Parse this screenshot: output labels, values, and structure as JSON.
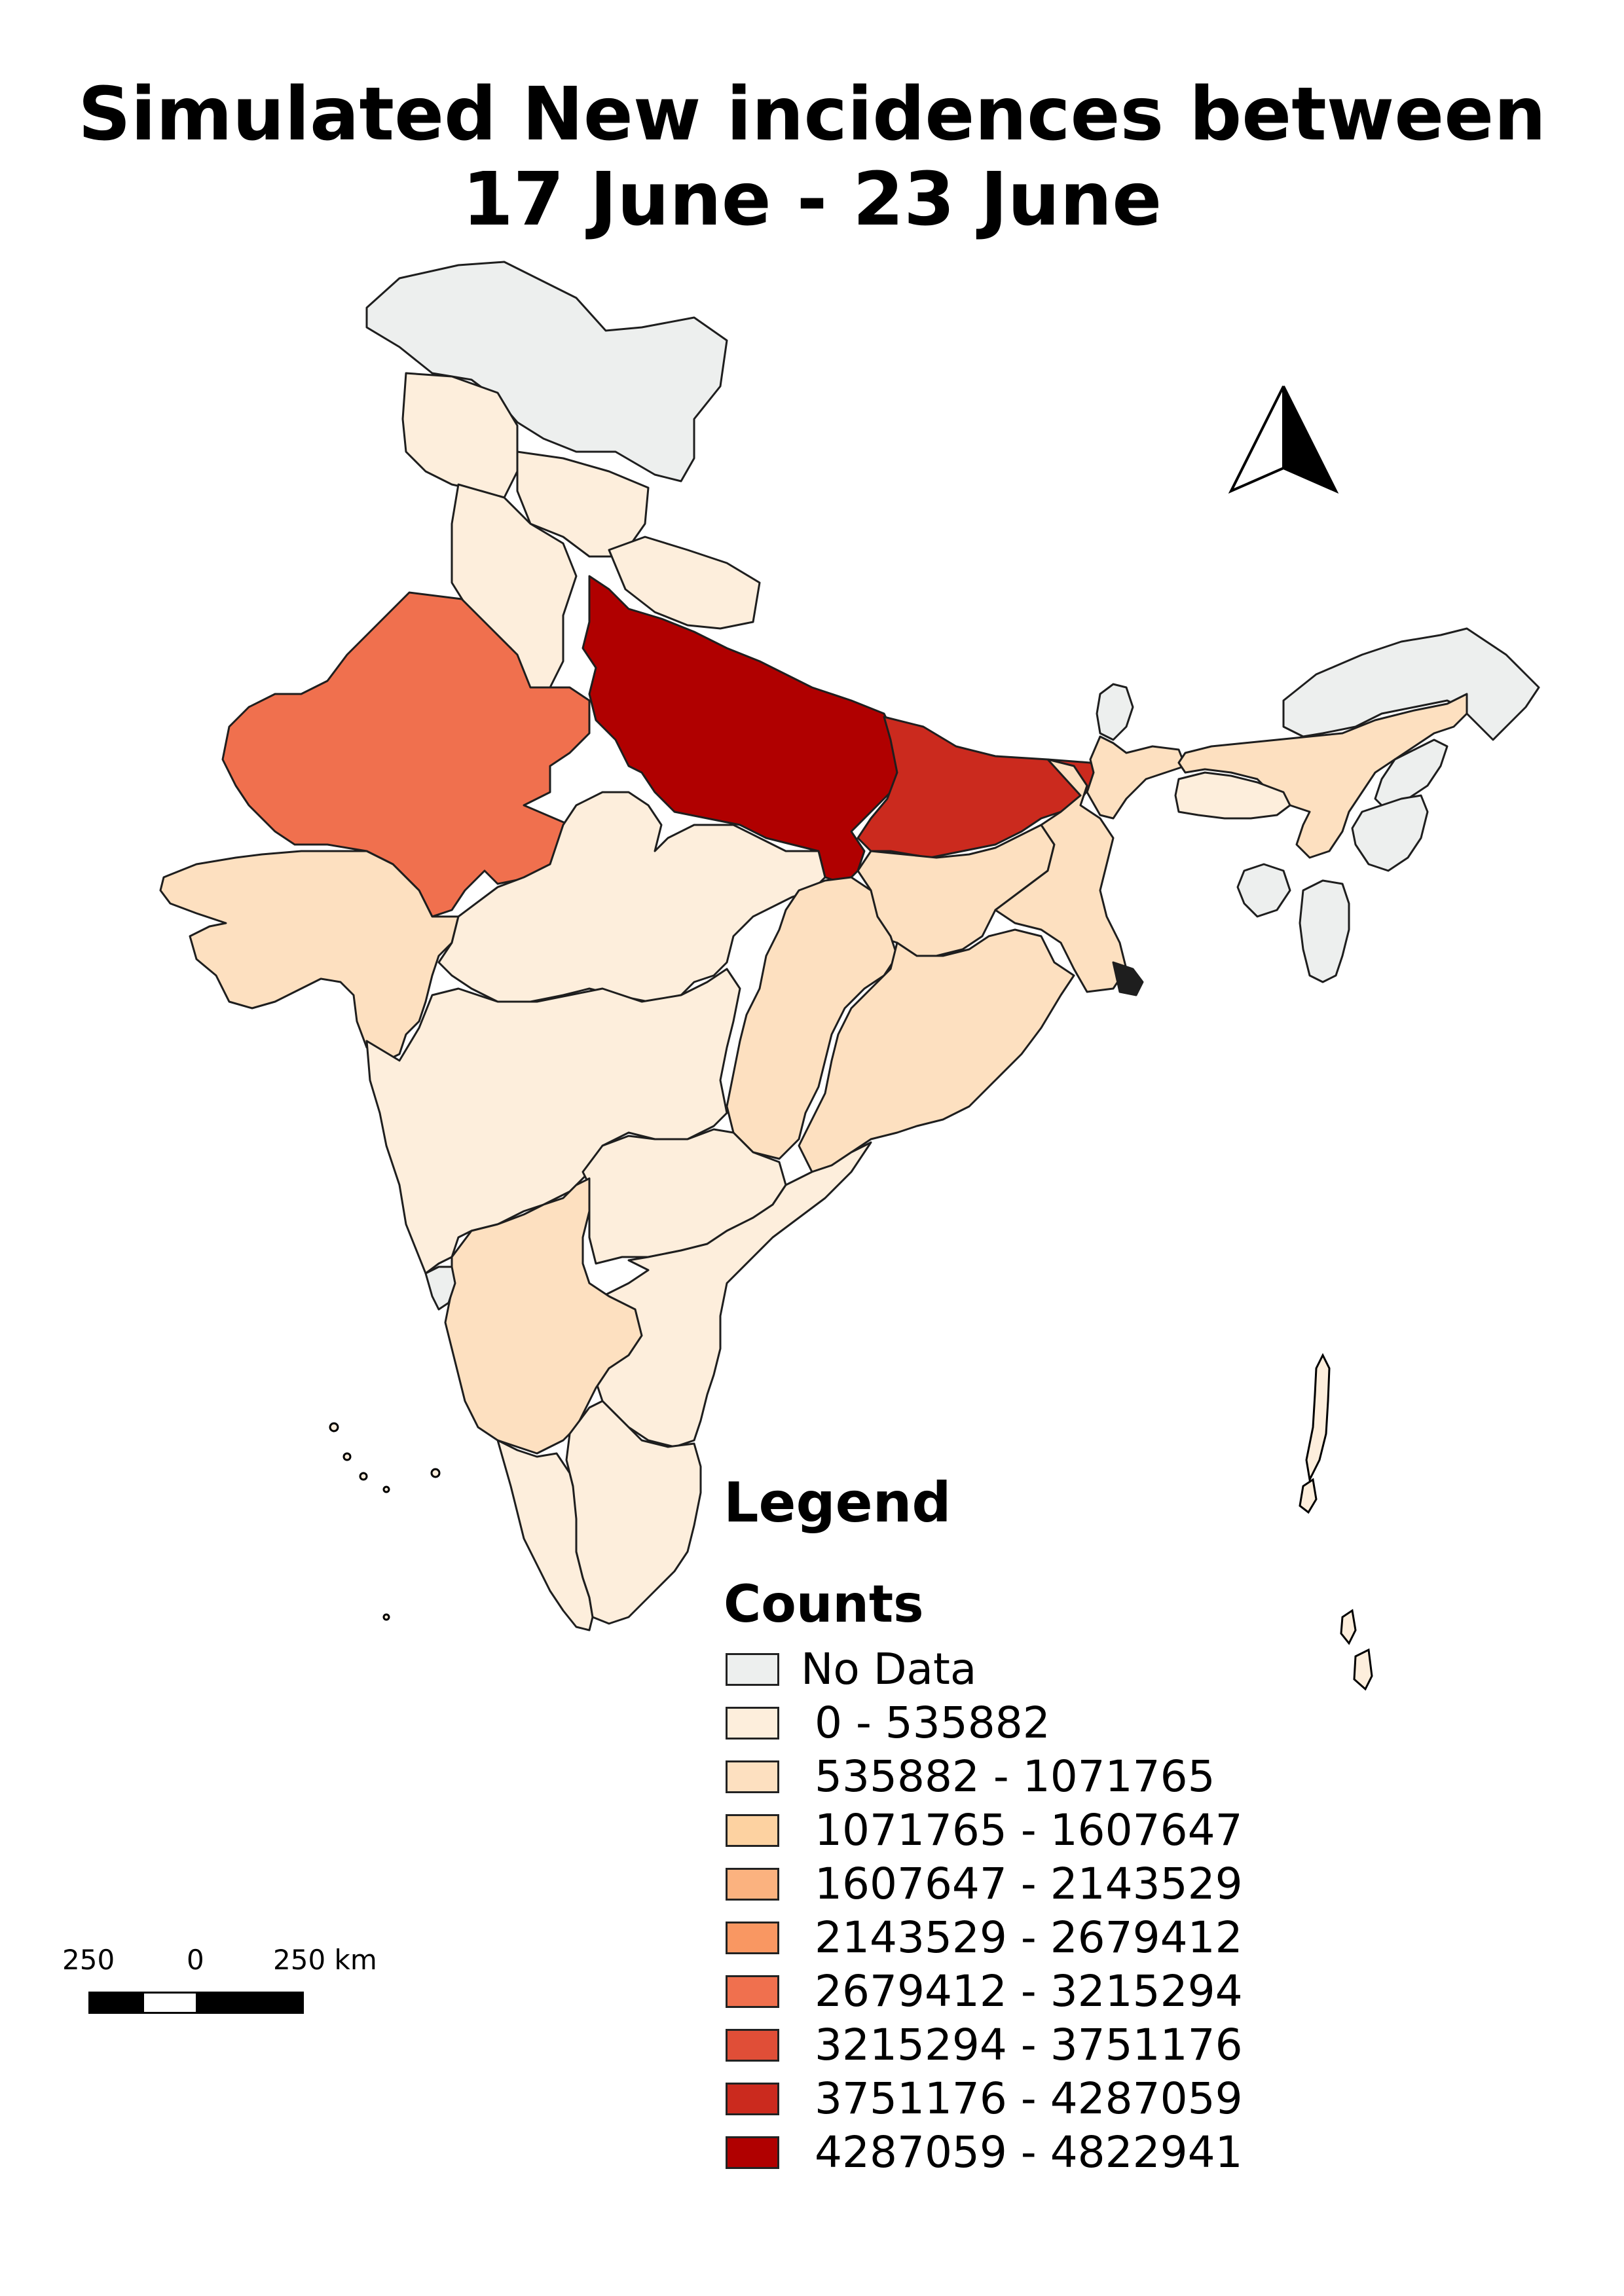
{
  "title_lines": [
    "Simulated New incidences between",
    "17 June - 23 June"
  ],
  "legend": {
    "title": "Legend",
    "subtitle": "Counts",
    "items": [
      {
        "label": "No Data",
        "color": "#edefee"
      },
      {
        "label": " 0 - 535882",
        "color": "#fdeedc"
      },
      {
        "label": " 535882 - 1071765",
        "color": "#fde0c0"
      },
      {
        "label": " 1071765 - 1607647",
        "color": "#fdd2a1"
      },
      {
        "label": " 1607647 - 2143529",
        "color": "#fbb27f"
      },
      {
        "label": " 2143529 - 2679412",
        "color": "#f99762"
      },
      {
        "label": " 2679412 - 3215294",
        "color": "#f0704e"
      },
      {
        "label": " 3215294 - 3751176",
        "color": "#e04e37"
      },
      {
        "label": " 3751176 - 4287059",
        "color": "#cb2a1e"
      },
      {
        "label": " 4287059 - 4822941",
        "color": "#b00000"
      }
    ]
  },
  "scale_bar": {
    "labels": [
      "250",
      "0",
      "250 km"
    ]
  },
  "north_arrow": {
    "icon": "north-arrow-icon"
  },
  "regions": [
    {
      "id": "jammu-kashmir",
      "class_color": "#edefee"
    },
    {
      "id": "himachal-pradesh",
      "class_color": "#fdeedc"
    },
    {
      "id": "punjab",
      "class_color": "#fdeedc"
    },
    {
      "id": "uttarakhand",
      "class_color": "#fdeedc"
    },
    {
      "id": "haryana",
      "class_color": "#fdeedc"
    },
    {
      "id": "rajasthan",
      "class_color": "#f0704e"
    },
    {
      "id": "uttar-pradesh",
      "class_color": "#b00000"
    },
    {
      "id": "bihar",
      "class_color": "#cb2a1e"
    },
    {
      "id": "gujarat",
      "class_color": "#fde0c0"
    },
    {
      "id": "madhya-pradesh",
      "class_color": "#fdeedc"
    },
    {
      "id": "jharkhand",
      "class_color": "#fde0c0"
    },
    {
      "id": "west-bengal",
      "class_color": "#fde0c0"
    },
    {
      "id": "chhattisgarh",
      "class_color": "#fde0c0"
    },
    {
      "id": "odisha",
      "class_color": "#fde0c0"
    },
    {
      "id": "maharashtra",
      "class_color": "#fdeedc"
    },
    {
      "id": "telangana",
      "class_color": "#fdeedc"
    },
    {
      "id": "andhra-pradesh",
      "class_color": "#fdeedc"
    },
    {
      "id": "karnataka",
      "class_color": "#fde0c0"
    },
    {
      "id": "kerala",
      "class_color": "#fdeedc"
    },
    {
      "id": "tamil-nadu",
      "class_color": "#fdeedc"
    },
    {
      "id": "goa",
      "class_color": "#edefee"
    },
    {
      "id": "sikkim",
      "class_color": "#edefee"
    },
    {
      "id": "assam",
      "class_color": "#fde0c0"
    },
    {
      "id": "arunachal-pradesh",
      "class_color": "#edefee"
    },
    {
      "id": "meghalaya",
      "class_color": "#fdeedc"
    },
    {
      "id": "nagaland",
      "class_color": "#edefee"
    },
    {
      "id": "manipur",
      "class_color": "#edefee"
    },
    {
      "id": "mizoram",
      "class_color": "#edefee"
    },
    {
      "id": "tripura",
      "class_color": "#edefee"
    }
  ]
}
